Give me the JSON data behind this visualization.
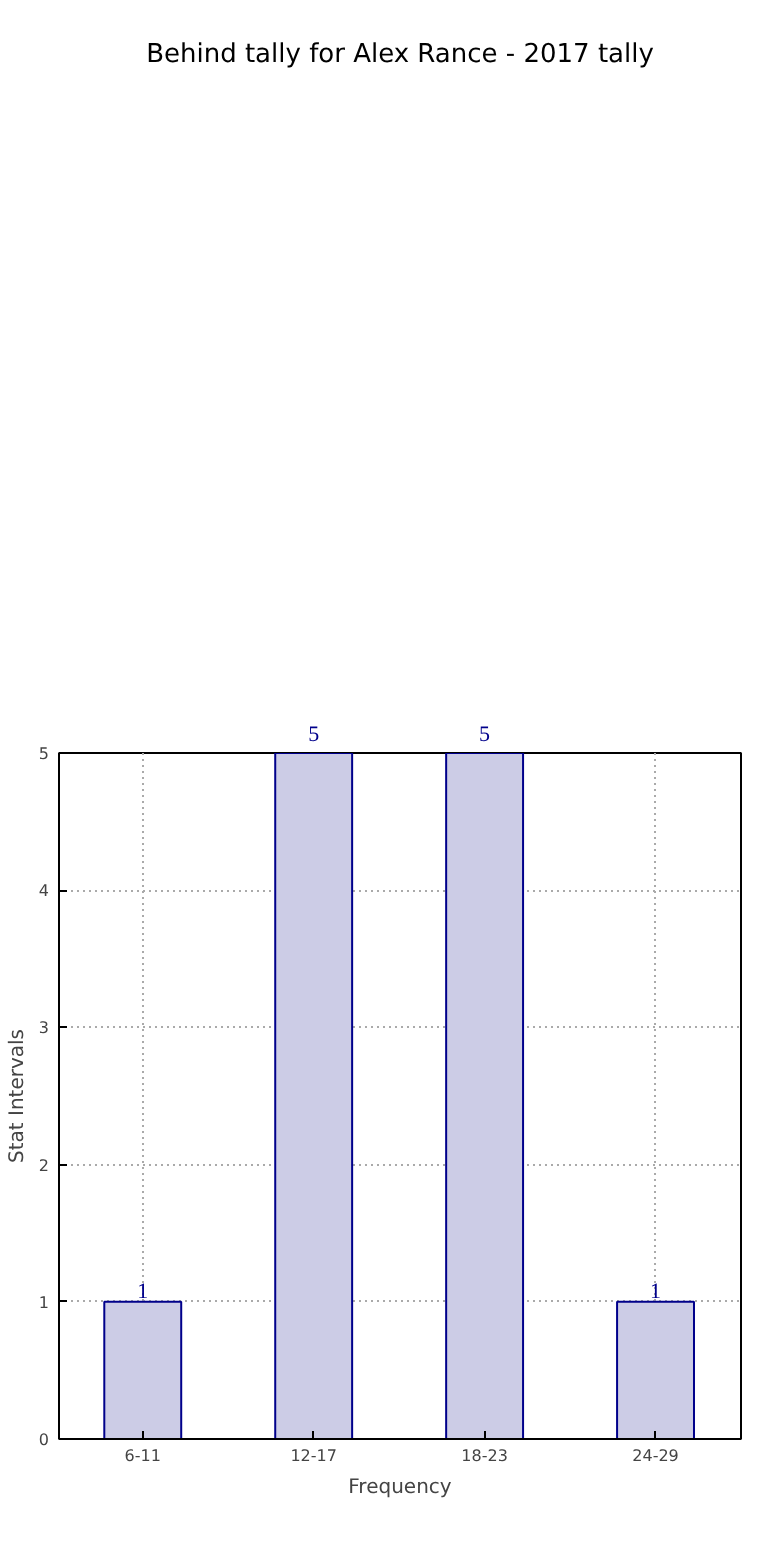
{
  "chart_data": {
    "type": "bar",
    "title": "Behind tally for Alex Rance - 2017 tally",
    "xlabel": "Frequency",
    "ylabel": "Stat Intervals",
    "categories": [
      "6-11",
      "12-17",
      "18-23",
      "24-29"
    ],
    "values": [
      1,
      5,
      5,
      1
    ],
    "color": "#cccce6",
    "ylim": [
      0,
      5
    ],
    "yticks": [
      0,
      1,
      2,
      3,
      4,
      5
    ],
    "grid": true,
    "data_labels": true
  }
}
